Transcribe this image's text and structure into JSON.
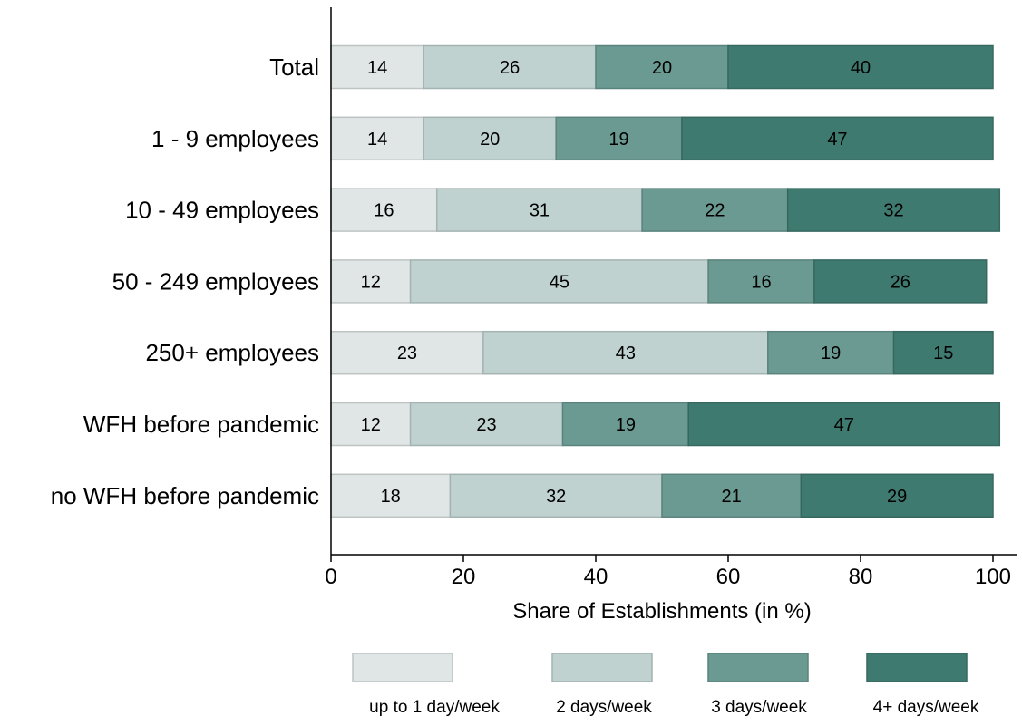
{
  "chart_data": {
    "type": "bar",
    "orientation": "horizontal",
    "stacked": true,
    "categories": [
      "Total",
      "1 - 9 employees",
      "10 - 49 employees",
      "50 - 249 employees",
      "250+ employees",
      "WFH before pandemic",
      "no WFH before pandemic"
    ],
    "series": [
      {
        "name": "up to 1 day/week",
        "color": "#dfe6e5",
        "values": [
          14,
          14,
          16,
          12,
          23,
          12,
          18
        ]
      },
      {
        "name": "2 days/week",
        "color": "#c0d2d0",
        "values": [
          26,
          20,
          31,
          45,
          43,
          23,
          32
        ]
      },
      {
        "name": "3 days/week",
        "color": "#6b9a93",
        "values": [
          20,
          19,
          22,
          16,
          19,
          19,
          21
        ]
      },
      {
        "name": "4+ days/week",
        "color": "#3f7a71",
        "values": [
          40,
          47,
          32,
          26,
          15,
          47,
          29
        ]
      }
    ],
    "xlabel": "Share of Establishments (in %)",
    "xlim": [
      0,
      100
    ],
    "xticks": [
      0,
      20,
      40,
      60,
      80,
      100
    ],
    "grid": false,
    "legend_position": "bottom",
    "data_labels": true
  }
}
